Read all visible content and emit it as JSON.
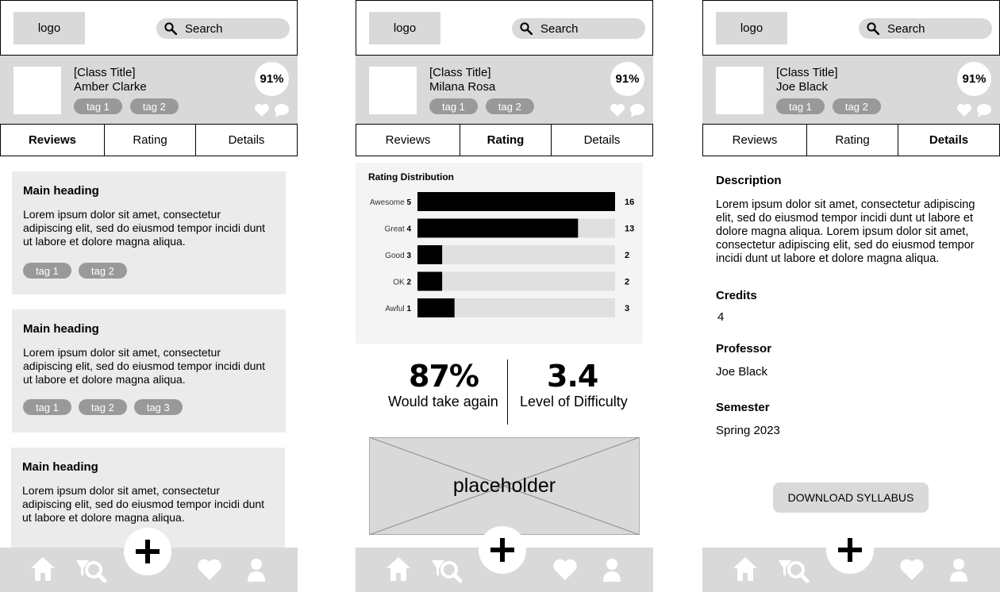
{
  "screens": [
    {
      "header": {
        "logo": "logo",
        "search_placeholder": "Search"
      },
      "banner": {
        "class_title": "[Class Title]",
        "professor": "Amber Clarke",
        "tags": [
          "tag 1",
          "tag 2"
        ],
        "percent": "91%"
      },
      "tabs": {
        "items": [
          "Reviews",
          "Rating",
          "Details"
        ],
        "active": "Reviews"
      },
      "reviews": [
        {
          "heading": "Main heading",
          "body": "Lorem ipsum dolor sit amet, consectetur adipiscing elit, sed do eiusmod tempor incidi dunt ut labore et dolore magna aliqua.",
          "tags": [
            "tag 1",
            "tag 2"
          ]
        },
        {
          "heading": "Main heading",
          "body": "Lorem ipsum dolor sit amet, consectetur adipiscing elit, sed do eiusmod tempor incidi dunt ut labore et dolore magna aliqua.",
          "tags": [
            "tag 1",
            "tag 2",
            "tag 3"
          ]
        },
        {
          "heading": "Main heading",
          "body": "Lorem ipsum dolor sit amet, consectetur adipiscing elit, sed do eiusmod tempor incidi dunt ut labore et dolore magna aliqua.",
          "tags": []
        }
      ]
    },
    {
      "header": {
        "logo": "logo",
        "search_placeholder": "Search"
      },
      "banner": {
        "class_title": "[Class Title]",
        "professor": "Milana Rosa",
        "tags": [
          "tag 1",
          "tag 2"
        ],
        "percent": "91%"
      },
      "tabs": {
        "items": [
          "Reviews",
          "Rating",
          "Details"
        ],
        "active": "Rating"
      },
      "rating": {
        "title": "Rating Distribution",
        "stats": {
          "would_take_again": "87%",
          "would_take_again_label": "Would take again",
          "difficulty": "3.4",
          "difficulty_label": "Level of Difficulty"
        },
        "placeholder": "placeholder"
      }
    },
    {
      "header": {
        "logo": "logo",
        "search_placeholder": "Search"
      },
      "banner": {
        "class_title": "[Class Title]",
        "professor": "Joe Black",
        "tags": [
          "tag 1",
          "tag 2"
        ],
        "percent": "91%"
      },
      "tabs": {
        "items": [
          "Reviews",
          "Rating",
          "Details"
        ],
        "active": "Details"
      },
      "details": {
        "description_label": "Description",
        "description": "Lorem ipsum dolor sit amet, consectetur adipiscing elit, sed do eiusmod tempor incidi dunt ut labore et dolore magna aliqua. Lorem ipsum dolor sit amet, consectetur adipiscing elit, sed do eiusmod tempor incidi dunt ut labore et dolore magna aliqua.",
        "credits_label": "Credits",
        "credits": "4",
        "professor_label": "Professor",
        "professor": "Joe Black",
        "semester_label": "Semester",
        "semester": "Spring 2023",
        "download_label": "DOWNLOAD SYLLABUS"
      }
    }
  ],
  "chart_data": {
    "type": "bar",
    "orientation": "horizontal",
    "title": "Rating Distribution",
    "categories": [
      "Awesome 5",
      "Great 4",
      "Good 3",
      "OK 2",
      "Awful 1"
    ],
    "category_names": [
      "Awesome",
      "Great",
      "Good",
      "OK",
      "Awful"
    ],
    "category_scores": [
      "5",
      "4",
      "3",
      "2",
      "1"
    ],
    "values": [
      16,
      13,
      2,
      2,
      3
    ],
    "xlim": [
      0,
      16
    ],
    "grid": false,
    "legend": "none"
  },
  "nav_icons": [
    "home-icon",
    "search-filter-icon",
    "plus-icon",
    "heart-icon",
    "profile-icon"
  ],
  "colors": {
    "panel": "#d9d9d9",
    "card": "#ebebeb",
    "tag": "#999999",
    "bar_fill": "#000000",
    "bar_track": "#e0e0e0"
  }
}
